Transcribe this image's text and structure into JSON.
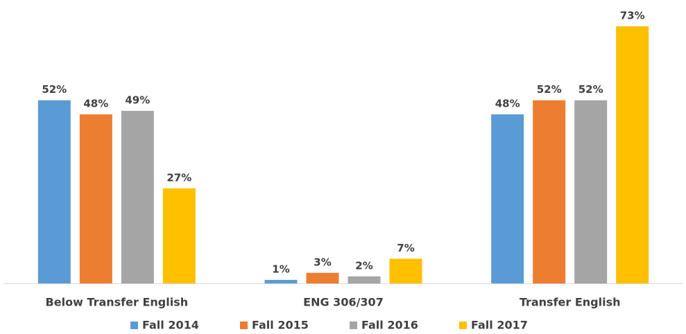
{
  "chart_data": {
    "type": "bar",
    "categories": [
      "Below Transfer English",
      "ENG 306/307",
      "Transfer English"
    ],
    "series": [
      {
        "name": "Fall 2014",
        "color": "#5b9bd5",
        "values": [
          52,
          1,
          48
        ],
        "value_labels": [
          "52%",
          "1%",
          "48%"
        ]
      },
      {
        "name": "Fall 2015",
        "color": "#ed7d31",
        "values": [
          48,
          3,
          52
        ],
        "value_labels": [
          "48%",
          "3%",
          "52%"
        ]
      },
      {
        "name": "Fall 2016",
        "color": "#a5a5a5",
        "values": [
          49,
          2,
          52
        ],
        "value_labels": [
          "49%",
          "2%",
          "52%"
        ]
      },
      {
        "name": "Fall 2017",
        "color": "#ffc000",
        "values": [
          27,
          7,
          73
        ],
        "value_labels": [
          "27%",
          "7%",
          "73%"
        ]
      }
    ],
    "legend": "bottom"
  }
}
